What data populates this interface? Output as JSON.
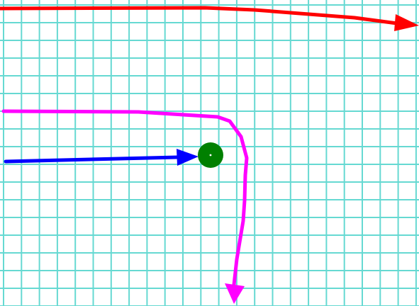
{
  "diagram": {
    "grid": {
      "visible": true,
      "color": "#66d9d2"
    },
    "paths": [
      {
        "name": "red-path",
        "color": "#ff0000",
        "arrowhead": true
      },
      {
        "name": "magenta-path",
        "color": "#ff00ff",
        "arrowhead": true
      },
      {
        "name": "blue-path",
        "color": "#0000ff",
        "arrowhead": true
      }
    ],
    "marker": {
      "name": "goal-marker",
      "color": "#008000",
      "center_dot_color": "#ffffff"
    }
  }
}
